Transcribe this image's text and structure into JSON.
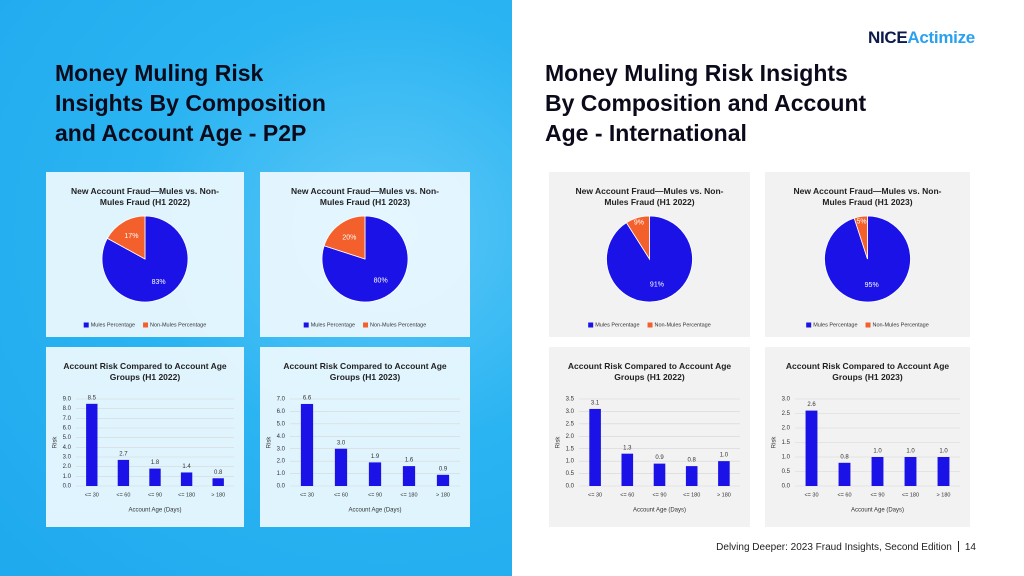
{
  "logo": {
    "brand": "NICE",
    "product": "Actimize"
  },
  "left_heading": [
    "Money Muling Risk",
    "Insights By Composition",
    "and Account Age - P2P"
  ],
  "right_heading": [
    "Money Muling Risk Insights",
    "By Composition and Account",
    "Age - International"
  ],
  "footer": {
    "text": "Delving Deeper: 2023 Fraud Insights, Second Edition",
    "page": "14"
  },
  "chart_data": [
    {
      "type": "pie",
      "title": "New Account Fraud—Mules vs. Non-Mules Fraud (H1 2022)",
      "categories": [
        "Mules Percentage",
        "Non-Mules Percentage"
      ],
      "values": [
        83,
        17
      ],
      "value_labels": [
        "83%",
        "17%"
      ],
      "colors": [
        "#1a12e6",
        "#f4602c"
      ]
    },
    {
      "type": "pie",
      "title": "New Account Fraud—Mules vs. Non-Mules Fraud (H1 2023)",
      "categories": [
        "Mules Percentage",
        "Non-Mules Percentage"
      ],
      "values": [
        80,
        20
      ],
      "value_labels": [
        "80%",
        "20%"
      ],
      "colors": [
        "#1a12e6",
        "#f4602c"
      ]
    },
    {
      "type": "bar",
      "title": "Account Risk Compared to Account Age Groups (H1 2022)",
      "categories": [
        "<= 30",
        "<= 60",
        "<= 90",
        "<= 180",
        "> 180"
      ],
      "values": [
        8.5,
        2.7,
        1.8,
        1.4,
        0.8
      ],
      "value_labels": [
        "8.5",
        "2.7",
        "1.8",
        "1.4",
        "0.8"
      ],
      "color": "#1a12e6",
      "x_label": "Account Age (Days)",
      "y_label": "Risk",
      "ylim": [
        0,
        9
      ],
      "yticks": [
        {
          "value": 0,
          "label": "0.0"
        },
        {
          "value": 1,
          "label": "1.0"
        },
        {
          "value": 2,
          "label": "2.0"
        },
        {
          "value": 3,
          "label": "3.0"
        },
        {
          "value": 4,
          "label": "4.0"
        },
        {
          "value": 5,
          "label": "5.0"
        },
        {
          "value": 6,
          "label": "6.0"
        },
        {
          "value": 7,
          "label": "7.0"
        },
        {
          "value": 8,
          "label": "8.0"
        },
        {
          "value": 9,
          "label": "9.0"
        }
      ],
      "grid": true
    },
    {
      "type": "bar",
      "title": "Account Risk Compared to Account Age Groups (H1 2023)",
      "categories": [
        "<= 30",
        "<= 60",
        "<= 90",
        "<= 180",
        "> 180"
      ],
      "values": [
        6.6,
        3.0,
        1.9,
        1.6,
        0.9
      ],
      "value_labels": [
        "6.6",
        "3.0",
        "1.9",
        "1.6",
        "0.9"
      ],
      "color": "#1a12e6",
      "x_label": "Account Age (Days)",
      "y_label": "Risk",
      "ylim": [
        0,
        7
      ],
      "yticks": [
        {
          "value": 0,
          "label": "0.0"
        },
        {
          "value": 1,
          "label": "1.0"
        },
        {
          "value": 2,
          "label": "2.0"
        },
        {
          "value": 3,
          "label": "3.0"
        },
        {
          "value": 4,
          "label": "4.0"
        },
        {
          "value": 5,
          "label": "5.0"
        },
        {
          "value": 6,
          "label": "6.0"
        },
        {
          "value": 7,
          "label": "7.0"
        }
      ],
      "grid": true
    },
    {
      "type": "pie",
      "title": "New Account Fraud—Mules vs. Non-Mules Fraud (H1 2022)",
      "categories": [
        "Mules Percentage",
        "Non-Mules Percentage"
      ],
      "values": [
        91,
        9
      ],
      "value_labels": [
        "91%",
        "9%"
      ],
      "colors": [
        "#1a12e6",
        "#f4602c"
      ]
    },
    {
      "type": "pie",
      "title": "New Account Fraud—Mules vs. Non-Mules Fraud (H1 2023)",
      "categories": [
        "Mules Percentage",
        "Non-Mules Percentage"
      ],
      "values": [
        95,
        5
      ],
      "value_labels": [
        "95%",
        "5%"
      ],
      "colors": [
        "#1a12e6",
        "#f4602c"
      ]
    },
    {
      "type": "bar",
      "title": "Account Risk Compared to Account Age Groups (H1 2022)",
      "categories": [
        "<= 30",
        "<= 60",
        "<= 90",
        "<= 180",
        "> 180"
      ],
      "values": [
        3.1,
        1.3,
        0.9,
        0.8,
        1.0
      ],
      "value_labels": [
        "3.1",
        "1.3",
        "0.9",
        "0.8",
        "1.0"
      ],
      "color": "#1a12e6",
      "x_label": "Account Age (Days)",
      "y_label": "Risk",
      "ylim": [
        0,
        3.5
      ],
      "yticks": [
        {
          "value": 0,
          "label": "0.0"
        },
        0.5,
        {
          "value": 1,
          "label": "1.0"
        },
        1.5,
        {
          "value": 2,
          "label": "2.0"
        },
        2.5,
        {
          "value": 3,
          "label": "3.0"
        },
        3.5
      ],
      "grid": true
    },
    {
      "type": "bar",
      "title": "Account Risk Compared to Account Age Groups (H1 2023)",
      "categories": [
        "<= 30",
        "<= 60",
        "<= 90",
        "<= 180",
        "> 180"
      ],
      "values": [
        2.6,
        0.8,
        1.0,
        1.0,
        1.0
      ],
      "value_labels": [
        "2.6",
        "0.8",
        "1.0",
        "1.0",
        "1.0"
      ],
      "color": "#1a12e6",
      "x_label": "Account Age (Days)",
      "y_label": "Risk",
      "ylim": [
        0,
        3
      ],
      "yticks": [
        {
          "value": 0,
          "label": "0.0"
        },
        0.5,
        {
          "value": 1,
          "label": "1.0"
        },
        1.5,
        {
          "value": 2,
          "label": "2.0"
        },
        2.5,
        {
          "value": 3,
          "label": "3.0"
        }
      ],
      "grid": true
    }
  ]
}
